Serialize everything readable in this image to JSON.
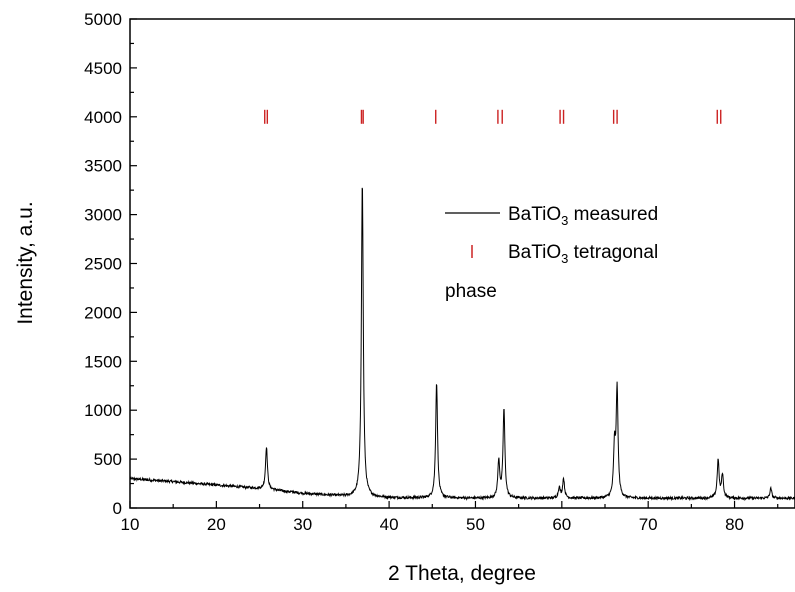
{
  "chart_data": {
    "type": "line",
    "xlabel": "2 Theta, degree",
    "ylabel": "Intensity, a.u.",
    "xlim": [
      10,
      87
    ],
    "ylim": [
      0,
      5000
    ],
    "x_ticks": [
      10,
      20,
      30,
      40,
      50,
      60,
      70,
      80
    ],
    "y_ticks": [
      0,
      500,
      1000,
      1500,
      2000,
      2500,
      3000,
      3500,
      4000,
      4500,
      5000
    ],
    "grid": false,
    "legend_position": "right",
    "colors": {
      "measured": "#000000",
      "reference": "#cc2222"
    },
    "baseline": [
      [
        10,
        300
      ],
      [
        15,
        270
      ],
      [
        20,
        235
      ],
      [
        25,
        200
      ],
      [
        30,
        150
      ],
      [
        35,
        120
      ],
      [
        40,
        105
      ],
      [
        50,
        100
      ],
      [
        60,
        100
      ],
      [
        70,
        100
      ],
      [
        80,
        100
      ],
      [
        87,
        100
      ]
    ],
    "series": [
      {
        "name": "BaTiO3 measured",
        "type": "line",
        "peaks": [
          {
            "x": 25.8,
            "y": 630
          },
          {
            "x": 36.9,
            "y": 3340
          },
          {
            "x": 45.5,
            "y": 1290
          },
          {
            "x": 52.7,
            "y": 480
          },
          {
            "x": 53.3,
            "y": 1010
          },
          {
            "x": 59.7,
            "y": 210
          },
          {
            "x": 60.2,
            "y": 300
          },
          {
            "x": 66.1,
            "y": 600
          },
          {
            "x": 66.4,
            "y": 1200
          },
          {
            "x": 78.1,
            "y": 490
          },
          {
            "x": 78.6,
            "y": 340
          },
          {
            "x": 84.2,
            "y": 200
          }
        ]
      },
      {
        "name": "BaTiO3 tetragonal phase",
        "type": "marker",
        "marker_y": 4000,
        "positions": [
          25.6,
          25.9,
          36.8,
          37.0,
          45.4,
          52.6,
          53.1,
          59.8,
          60.2,
          66.0,
          66.4,
          78.0,
          78.4
        ]
      }
    ],
    "legend": {
      "measured": {
        "pre": "BaTiO",
        "sub": "3",
        "post": " measured"
      },
      "reference": {
        "pre": "BaTiO",
        "sub": "3",
        "post": " tetragonal"
      },
      "reference_line2": "phase"
    }
  }
}
